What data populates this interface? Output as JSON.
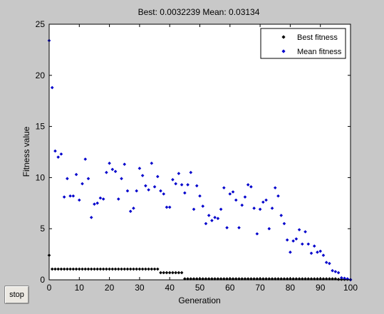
{
  "colors": {
    "figure_bg": "#c8c8c8",
    "axes_bg": "#ffffff",
    "best_marker": "#000000",
    "mean_marker": "#0000cc"
  },
  "controls": {
    "stop_label": "stop"
  },
  "chart_data": {
    "type": "scatter",
    "title": "Best: 0.0032239 Mean: 0.03134",
    "xlabel": "Generation",
    "ylabel": "Fitness value",
    "xlim": [
      0,
      100
    ],
    "ylim": [
      0,
      25
    ],
    "xticks": [
      0,
      10,
      20,
      30,
      40,
      50,
      60,
      70,
      80,
      90,
      100
    ],
    "yticks": [
      0,
      5,
      10,
      15,
      20,
      25
    ],
    "grid": false,
    "legend_position": "top-right",
    "marker": "diamond",
    "series": [
      {
        "name": "Best fitness",
        "x": [
          0,
          1,
          2,
          3,
          4,
          5,
          6,
          7,
          8,
          9,
          10,
          11,
          12,
          13,
          14,
          15,
          16,
          17,
          18,
          19,
          20,
          21,
          22,
          23,
          24,
          25,
          26,
          27,
          28,
          29,
          30,
          31,
          32,
          33,
          34,
          35,
          36,
          37,
          38,
          39,
          40,
          41,
          42,
          43,
          44,
          45,
          46,
          47,
          48,
          49,
          50,
          51,
          52,
          53,
          54,
          55,
          56,
          57,
          58,
          59,
          60,
          61,
          62,
          63,
          64,
          65,
          66,
          67,
          68,
          69,
          70,
          71,
          72,
          73,
          74,
          75,
          76,
          77,
          78,
          79,
          80,
          81,
          82,
          83,
          84,
          85,
          86,
          87,
          88,
          89,
          90,
          91,
          92,
          93,
          94,
          95,
          96,
          97,
          98,
          99,
          100
        ],
        "y": [
          2.4,
          1.05,
          1.05,
          1.05,
          1.05,
          1.05,
          1.05,
          1.05,
          1.05,
          1.05,
          1.05,
          1.05,
          1.05,
          1.05,
          1.05,
          1.05,
          1.05,
          1.05,
          1.05,
          1.05,
          1.05,
          1.05,
          1.05,
          1.05,
          1.05,
          1.05,
          1.05,
          1.05,
          1.05,
          1.05,
          1.05,
          1.05,
          1.05,
          1.05,
          1.05,
          1.05,
          1.05,
          0.7,
          0.7,
          0.7,
          0.7,
          0.7,
          0.7,
          0.7,
          0.7,
          0.1,
          0.1,
          0.1,
          0.1,
          0.1,
          0.1,
          0.1,
          0.1,
          0.1,
          0.1,
          0.1,
          0.1,
          0.1,
          0.1,
          0.1,
          0.1,
          0.1,
          0.1,
          0.1,
          0.1,
          0.1,
          0.1,
          0.1,
          0.1,
          0.1,
          0.1,
          0.1,
          0.1,
          0.1,
          0.1,
          0.1,
          0.1,
          0.1,
          0.1,
          0.1,
          0.1,
          0.1,
          0.1,
          0.1,
          0.1,
          0.1,
          0.1,
          0.1,
          0.1,
          0.1,
          0.1,
          0.1,
          0.1,
          0.1,
          0.1,
          0.1,
          0.05,
          0.05,
          0.05,
          0.05,
          0.003
        ]
      },
      {
        "name": "Mean fitness",
        "x": [
          0,
          1,
          2,
          3,
          4,
          5,
          6,
          7,
          8,
          9,
          10,
          11,
          12,
          13,
          14,
          15,
          16,
          17,
          18,
          19,
          20,
          21,
          22,
          23,
          24,
          25,
          26,
          27,
          28,
          29,
          30,
          31,
          32,
          33,
          34,
          35,
          36,
          37,
          38,
          39,
          40,
          41,
          42,
          43,
          44,
          45,
          46,
          47,
          48,
          49,
          50,
          51,
          52,
          53,
          54,
          55,
          56,
          57,
          58,
          59,
          60,
          61,
          62,
          63,
          64,
          65,
          66,
          67,
          68,
          69,
          70,
          71,
          72,
          73,
          74,
          75,
          76,
          77,
          78,
          79,
          80,
          81,
          82,
          83,
          84,
          85,
          86,
          87,
          88,
          89,
          90,
          91,
          92,
          93,
          94,
          95,
          96,
          97,
          98,
          99,
          100
        ],
        "y": [
          23.4,
          18.8,
          12.6,
          12.0,
          12.3,
          8.1,
          9.9,
          8.2,
          8.2,
          10.3,
          7.8,
          9.4,
          11.8,
          9.9,
          6.1,
          7.4,
          7.5,
          8.0,
          7.9,
          10.5,
          11.4,
          10.8,
          10.6,
          7.9,
          9.9,
          11.3,
          8.7,
          6.7,
          7.0,
          8.7,
          10.9,
          10.2,
          9.2,
          8.8,
          11.4,
          9.1,
          10.1,
          8.7,
          8.4,
          7.1,
          7.1,
          9.8,
          9.4,
          10.4,
          9.3,
          8.5,
          9.3,
          10.5,
          6.9,
          9.2,
          8.2,
          7.2,
          5.5,
          6.3,
          5.8,
          6.1,
          6.0,
          6.9,
          9.0,
          5.1,
          8.4,
          8.6,
          7.8,
          5.1,
          7.3,
          8.1,
          9.3,
          9.1,
          7.0,
          4.5,
          6.9,
          7.6,
          7.8,
          5.0,
          7.0,
          9.0,
          8.2,
          6.3,
          5.5,
          3.9,
          2.7,
          3.8,
          4.0,
          4.9,
          3.5,
          4.7,
          3.5,
          2.6,
          3.3,
          2.7,
          2.8,
          2.4,
          1.7,
          1.6,
          0.9,
          0.8,
          0.7,
          0.2,
          0.15,
          0.1,
          0.03
        ]
      }
    ]
  }
}
